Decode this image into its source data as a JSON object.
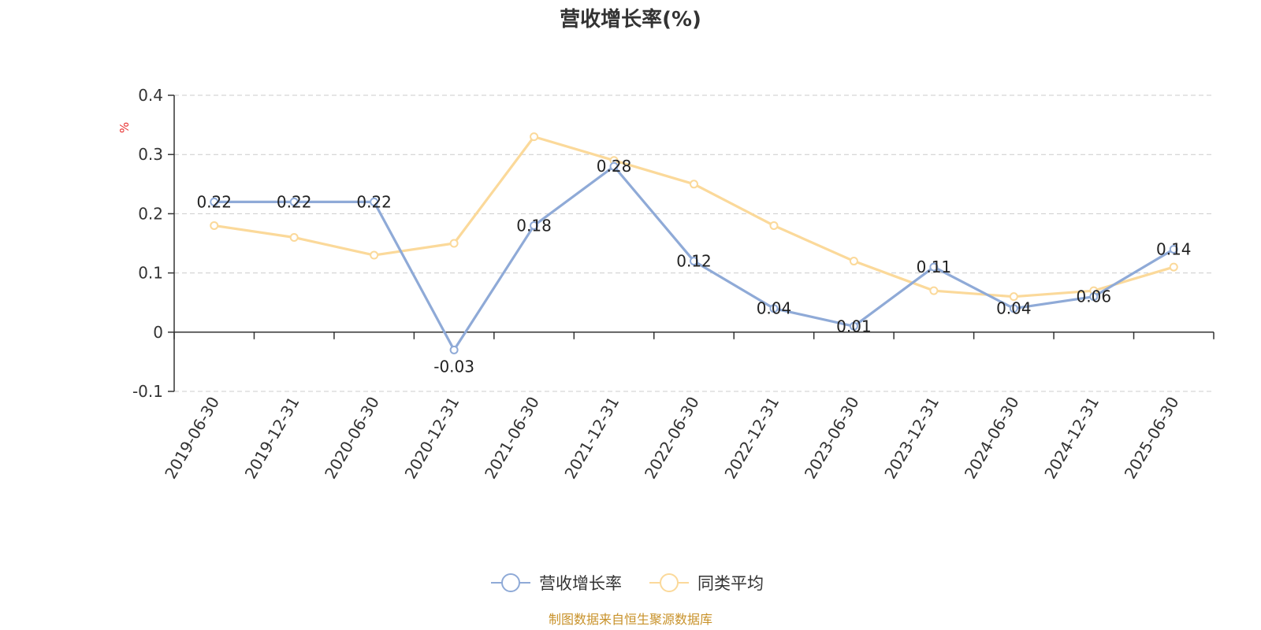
{
  "chart_data": {
    "type": "line",
    "title": "营收增长率(%)",
    "unit_label": "%",
    "categories": [
      "2019-06-30",
      "2019-12-31",
      "2020-06-30",
      "2020-12-31",
      "2021-06-30",
      "2021-12-31",
      "2022-06-30",
      "2022-12-31",
      "2023-06-30",
      "2023-12-31",
      "2024-06-30",
      "2024-12-31",
      "2025-06-30"
    ],
    "series": [
      {
        "name": "营收增长率",
        "color": "#8faad7",
        "values": [
          0.22,
          0.22,
          0.22,
          -0.03,
          0.18,
          0.28,
          0.12,
          0.04,
          0.01,
          0.11,
          0.04,
          0.06,
          0.14
        ],
        "data_labels": [
          "0.22",
          "0.22",
          "0.22",
          "-0.03",
          "0.18",
          "0.28",
          "0.12",
          "0.04",
          "0.01",
          "0.11",
          "0.04",
          "0.06",
          "0.14"
        ]
      },
      {
        "name": "同类平均",
        "color": "#fbd99a",
        "values": [
          0.18,
          0.16,
          0.13,
          0.15,
          0.33,
          0.29,
          0.25,
          0.18,
          0.12,
          0.07,
          0.06,
          0.07,
          0.11
        ]
      }
    ],
    "ylim": [
      -0.1,
      0.4
    ],
    "yticks": [
      -0.1,
      0,
      0.1,
      0.2,
      0.3,
      0.4
    ],
    "ytick_labels": [
      "-0.1",
      "0",
      "0.1",
      "0.2",
      "0.3",
      "0.4"
    ],
    "grid": true,
    "legend_position": "bottom-center"
  },
  "footer": {
    "source": "制图数据来自恒生聚源数据库"
  }
}
